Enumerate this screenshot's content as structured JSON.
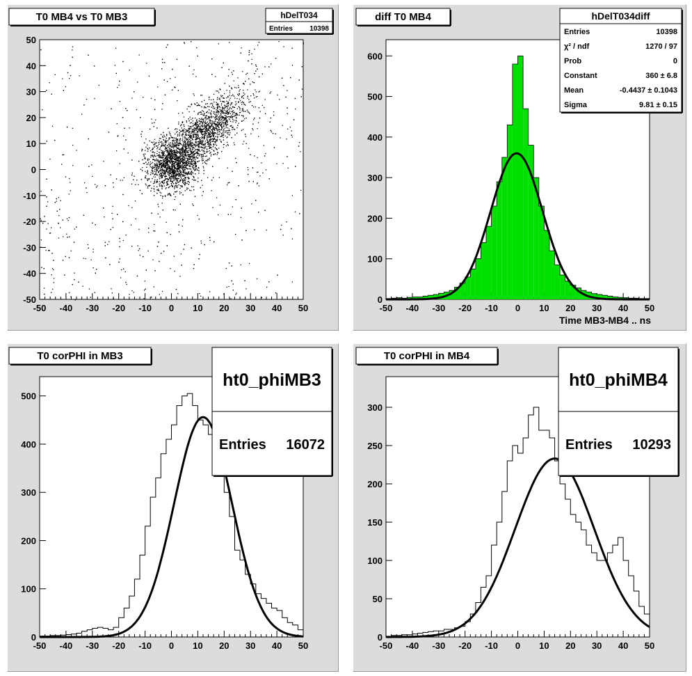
{
  "chart_data": [
    {
      "type": "scatter",
      "title": "T0 MB4 vs T0 MB3",
      "xlabel": "",
      "ylabel": "",
      "xlim": [
        -50,
        50
      ],
      "ylim": [
        -50,
        50
      ],
      "xticks": [
        "-50",
        "-40",
        "-30",
        "-20",
        "-10",
        "0",
        "10",
        "20",
        "30",
        "40",
        "50"
      ],
      "yticks": [
        "-50",
        "-40",
        "-30",
        "-20",
        "-10",
        "0",
        "10",
        "20",
        "30",
        "40",
        "50"
      ],
      "stats": {
        "name": "hDelT034",
        "rows": [
          {
            "label": "Entries",
            "value": "10398"
          }
        ]
      },
      "distribution": {
        "description_points": 10398,
        "cores": [
          {
            "x": 0,
            "y": 2,
            "sx": 5,
            "sy": 5,
            "weight": 0.35
          },
          {
            "x": 12,
            "y": 14,
            "sx": 8,
            "sy": 8,
            "weight": 0.45,
            "rho": 0.75
          }
        ],
        "background_weight": 0.2
      }
    },
    {
      "type": "bar",
      "title": "diff T0 MB4",
      "xlabel": "Time MB3-MB4  ..  ns",
      "ylabel": "",
      "xlim": [
        -50,
        50
      ],
      "ylim": [
        0,
        640
      ],
      "fill": "#00e000",
      "xticks": [
        "-50",
        "-40",
        "-30",
        "-20",
        "-10",
        "0",
        "10",
        "20",
        "30",
        "40",
        "50"
      ],
      "yticks": [
        "0",
        "100",
        "200",
        "300",
        "400",
        "500",
        "600"
      ],
      "stats": {
        "name": "hDelT034diff",
        "rows": [
          {
            "label": "Entries",
            "value": "10398"
          },
          {
            "label": "χ² / ndf",
            "value": "1270 / 97"
          },
          {
            "label": "Prob",
            "value": "0"
          },
          {
            "label": "Constant",
            "value": "360 ± 6.8"
          },
          {
            "label": "Mean",
            "value": "-0.4437 ± 0.1043"
          },
          {
            "label": "Sigma",
            "value": "9.81 ± 0.15"
          }
        ]
      },
      "histogram": {
        "bin_centers": [
          -49,
          -47,
          -45,
          -43,
          -41,
          -39,
          -37,
          -35,
          -33,
          -31,
          -29,
          -27,
          -25,
          -23,
          -21,
          -19,
          -17,
          -15,
          -13,
          -11,
          -9,
          -7,
          -5,
          -3,
          -1,
          1,
          3,
          5,
          7,
          9,
          11,
          13,
          15,
          17,
          19,
          21,
          23,
          25,
          27,
          29,
          31,
          33,
          35,
          37,
          39,
          41,
          43,
          45,
          47,
          49
        ],
        "values": [
          2,
          3,
          4,
          3,
          5,
          6,
          6,
          8,
          10,
          12,
          15,
          18,
          22,
          30,
          40,
          55,
          75,
          100,
          140,
          180,
          230,
          290,
          350,
          430,
          580,
          600,
          470,
          380,
          300,
          230,
          170,
          120,
          85,
          60,
          45,
          35,
          28,
          22,
          18,
          14,
          12,
          10,
          8,
          6,
          5,
          4,
          3,
          3,
          2,
          2
        ]
      },
      "fit": {
        "constant": 360,
        "mean": -0.4437,
        "sigma": 9.81
      }
    },
    {
      "type": "line",
      "title": "T0 corPHI in MB3",
      "xlabel": "",
      "ylabel": "",
      "xlim": [
        -50,
        50
      ],
      "ylim": [
        0,
        540
      ],
      "xticks": [
        "-50",
        "-40",
        "-30",
        "-20",
        "-10",
        "0",
        "10",
        "20",
        "30",
        "40",
        "50"
      ],
      "yticks": [
        "0",
        "100",
        "200",
        "300",
        "400",
        "500"
      ],
      "stats": {
        "name": "ht0_phiMB3",
        "rows": [
          {
            "label": "Entries",
            "value": "16072"
          }
        ]
      },
      "histogram": {
        "bin_centers": [
          -49,
          -47,
          -45,
          -43,
          -41,
          -39,
          -37,
          -35,
          -33,
          -31,
          -29,
          -27,
          -25,
          -23,
          -21,
          -19,
          -17,
          -15,
          -13,
          -11,
          -9,
          -7,
          -5,
          -3,
          -1,
          1,
          3,
          5,
          7,
          9,
          11,
          13,
          15,
          17,
          19,
          21,
          23,
          25,
          27,
          29,
          31,
          33,
          35,
          37,
          39,
          41,
          43,
          45,
          47,
          49
        ],
        "values": [
          2,
          2,
          3,
          3,
          4,
          5,
          6,
          8,
          12,
          15,
          18,
          20,
          18,
          15,
          20,
          40,
          60,
          85,
          120,
          170,
          230,
          290,
          330,
          380,
          410,
          440,
          480,
          500,
          505,
          480,
          450,
          440,
          420,
          400,
          370,
          300,
          250,
          180,
          160,
          130,
          110,
          90,
          80,
          70,
          60,
          55,
          40,
          30,
          25,
          15
        ]
      },
      "fit": {
        "constant": 456,
        "mean": 12,
        "sigma": 11
      }
    },
    {
      "type": "line",
      "title": "T0 corPHI in MB4",
      "xlabel": "",
      "ylabel": "",
      "xlim": [
        -50,
        50
      ],
      "ylim": [
        0,
        340
      ],
      "xticks": [
        "-50",
        "-40",
        "-30",
        "-20",
        "-10",
        "0",
        "10",
        "20",
        "30",
        "40",
        "50"
      ],
      "yticks": [
        "0",
        "50",
        "100",
        "150",
        "200",
        "250",
        "300"
      ],
      "stats": {
        "name": "ht0_phiMB4",
        "rows": [
          {
            "label": "Entries",
            "value": "10293"
          }
        ]
      },
      "histogram": {
        "bin_centers": [
          -49,
          -47,
          -45,
          -43,
          -41,
          -39,
          -37,
          -35,
          -33,
          -31,
          -29,
          -27,
          -25,
          -23,
          -21,
          -19,
          -17,
          -15,
          -13,
          -11,
          -9,
          -7,
          -5,
          -3,
          -1,
          1,
          3,
          5,
          7,
          9,
          11,
          13,
          15,
          17,
          19,
          21,
          23,
          25,
          27,
          29,
          31,
          33,
          35,
          37,
          39,
          41,
          43,
          45,
          47,
          49
        ],
        "values": [
          1,
          2,
          2,
          3,
          3,
          4,
          5,
          6,
          7,
          8,
          8,
          10,
          10,
          12,
          14,
          20,
          30,
          45,
          65,
          80,
          120,
          150,
          190,
          230,
          250,
          240,
          260,
          290,
          300,
          270,
          270,
          260,
          230,
          200,
          180,
          160,
          150,
          140,
          120,
          110,
          100,
          100,
          110,
          120,
          130,
          100,
          80,
          60,
          40,
          30
        ]
      },
      "fit": {
        "constant": 233,
        "mean": 14,
        "sigma": 15
      }
    }
  ]
}
